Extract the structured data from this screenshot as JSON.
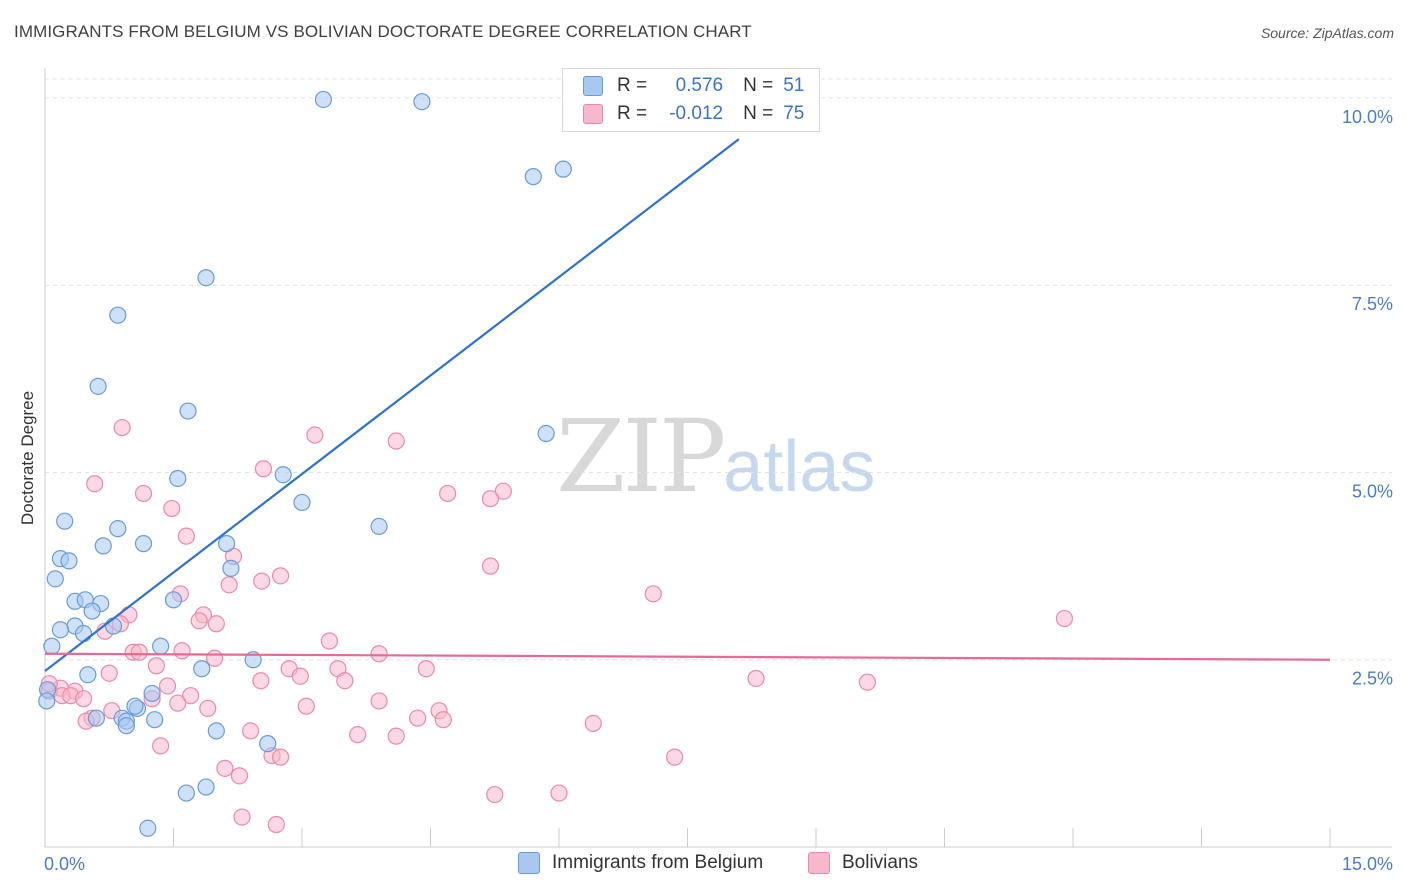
{
  "title": "IMMIGRANTS FROM BELGIUM VS BOLIVIAN DOCTORATE DEGREE CORRELATION CHART",
  "source": "Source: ZipAtlas.com",
  "watermark": {
    "zip": "ZIP",
    "atlas": "atlas"
  },
  "legend": {
    "r_label": "R =",
    "n_label": "N =",
    "belgium": {
      "r": "0.576",
      "n": "51"
    },
    "bolivians": {
      "r": "-0.012",
      "n": "75"
    }
  },
  "colors": {
    "belgium_fill": "#a8c8f0",
    "belgium_stroke": "#6a9bd8",
    "belgium_line": "#2f72d0",
    "bolivians_fill": "#f7b8cc",
    "bolivians_stroke": "#ea8aa8",
    "bolivians_line": "#e86a93",
    "tick_label": "#4a7cc7"
  },
  "chart_data": {
    "type": "scatter",
    "title": "IMMIGRANTS FROM BELGIUM VS BOLIVIAN DOCTORATE DEGREE CORRELATION CHART",
    "xlabel": "",
    "ylabel": "Doctorate Degree",
    "xlim": [
      0,
      15
    ],
    "ylim": [
      0,
      10.4
    ],
    "x_tick_labels": [
      "0.0%",
      "15.0%"
    ],
    "y_ticks": [
      2.5,
      5.0,
      7.5,
      10.0
    ],
    "y_tick_labels": [
      "2.5%",
      "5.0%",
      "7.5%",
      "10.0%"
    ],
    "grid": true,
    "series": [
      {
        "name": "Immigrants from Belgium",
        "r": 0.576,
        "n": 51,
        "trend": {
          "x": [
            0.0,
            8.1
          ],
          "y": [
            2.35,
            9.45
          ]
        },
        "points": [
          [
            3.25,
            9.98
          ],
          [
            4.4,
            9.95
          ],
          [
            5.7,
            8.95
          ],
          [
            6.05,
            9.05
          ],
          [
            1.88,
            7.6
          ],
          [
            0.85,
            7.1
          ],
          [
            0.62,
            6.15
          ],
          [
            1.67,
            5.82
          ],
          [
            5.85,
            5.52
          ],
          [
            1.55,
            4.92
          ],
          [
            2.78,
            4.97
          ],
          [
            3.0,
            4.6
          ],
          [
            0.23,
            4.35
          ],
          [
            0.85,
            4.25
          ],
          [
            3.9,
            4.28
          ],
          [
            0.68,
            4.02
          ],
          [
            1.15,
            4.05
          ],
          [
            2.12,
            4.05
          ],
          [
            0.18,
            3.85
          ],
          [
            0.28,
            3.82
          ],
          [
            2.17,
            3.72
          ],
          [
            0.12,
            3.58
          ],
          [
            0.35,
            3.28
          ],
          [
            0.47,
            3.3
          ],
          [
            0.65,
            3.25
          ],
          [
            1.5,
            3.3
          ],
          [
            0.55,
            3.15
          ],
          [
            0.35,
            2.95
          ],
          [
            0.18,
            2.9
          ],
          [
            0.45,
            2.85
          ],
          [
            0.8,
            2.95
          ],
          [
            0.08,
            2.68
          ],
          [
            1.35,
            2.68
          ],
          [
            2.43,
            2.5
          ],
          [
            0.5,
            2.3
          ],
          [
            1.83,
            2.38
          ],
          [
            0.03,
            2.1
          ],
          [
            0.02,
            1.95
          ],
          [
            1.25,
            2.05
          ],
          [
            1.08,
            1.85
          ],
          [
            1.05,
            1.88
          ],
          [
            0.9,
            1.72
          ],
          [
            0.95,
            1.68
          ],
          [
            0.6,
            1.72
          ],
          [
            1.28,
            1.7
          ],
          [
            0.95,
            1.62
          ],
          [
            2.0,
            1.55
          ],
          [
            2.6,
            1.38
          ],
          [
            1.88,
            0.8
          ],
          [
            1.65,
            0.72
          ],
          [
            1.2,
            0.25
          ]
        ]
      },
      {
        "name": "Bolivians",
        "r": -0.012,
        "n": 75,
        "trend": {
          "x": [
            0.0,
            15.0
          ],
          "y": [
            2.58,
            2.5
          ]
        },
        "points": [
          [
            0.9,
            5.6
          ],
          [
            3.15,
            5.5
          ],
          [
            4.1,
            5.42
          ],
          [
            2.55,
            5.05
          ],
          [
            0.58,
            4.85
          ],
          [
            4.7,
            4.72
          ],
          [
            5.35,
            4.75
          ],
          [
            5.2,
            4.65
          ],
          [
            1.15,
            4.72
          ],
          [
            1.48,
            4.52
          ],
          [
            1.65,
            4.15
          ],
          [
            2.2,
            3.88
          ],
          [
            5.2,
            3.75
          ],
          [
            2.75,
            3.62
          ],
          [
            2.53,
            3.55
          ],
          [
            2.15,
            3.5
          ],
          [
            7.1,
            3.38
          ],
          [
            1.58,
            3.38
          ],
          [
            11.9,
            3.05
          ],
          [
            0.98,
            3.1
          ],
          [
            1.85,
            3.1
          ],
          [
            1.8,
            3.02
          ],
          [
            2.0,
            2.98
          ],
          [
            0.88,
            2.98
          ],
          [
            0.7,
            2.88
          ],
          [
            3.32,
            2.75
          ],
          [
            1.03,
            2.6
          ],
          [
            1.1,
            2.6
          ],
          [
            1.6,
            2.62
          ],
          [
            3.9,
            2.58
          ],
          [
            1.98,
            2.52
          ],
          [
            1.3,
            2.42
          ],
          [
            3.42,
            2.38
          ],
          [
            4.45,
            2.38
          ],
          [
            2.85,
            2.38
          ],
          [
            0.75,
            2.32
          ],
          [
            2.98,
            2.28
          ],
          [
            3.5,
            2.22
          ],
          [
            8.3,
            2.25
          ],
          [
            9.6,
            2.2
          ],
          [
            2.52,
            2.22
          ],
          [
            1.43,
            2.15
          ],
          [
            0.18,
            2.12
          ],
          [
            0.35,
            2.08
          ],
          [
            0.05,
            2.08
          ],
          [
            0.2,
            2.02
          ],
          [
            0.3,
            2.02
          ],
          [
            1.25,
            1.98
          ],
          [
            1.7,
            2.02
          ],
          [
            0.45,
            1.98
          ],
          [
            1.55,
            1.92
          ],
          [
            3.9,
            1.95
          ],
          [
            4.6,
            1.82
          ],
          [
            3.05,
            1.88
          ],
          [
            1.9,
            1.85
          ],
          [
            0.78,
            1.82
          ],
          [
            0.55,
            1.72
          ],
          [
            0.48,
            1.68
          ],
          [
            4.35,
            1.72
          ],
          [
            4.65,
            1.7
          ],
          [
            6.4,
            1.65
          ],
          [
            2.4,
            1.55
          ],
          [
            3.65,
            1.5
          ],
          [
            4.1,
            1.48
          ],
          [
            1.35,
            1.35
          ],
          [
            2.65,
            1.22
          ],
          [
            2.75,
            1.2
          ],
          [
            7.35,
            1.2
          ],
          [
            2.1,
            1.05
          ],
          [
            2.27,
            0.95
          ],
          [
            5.25,
            0.7
          ],
          [
            6.0,
            0.72
          ],
          [
            2.3,
            0.4
          ],
          [
            2.7,
            0.3
          ],
          [
            0.05,
            2.18
          ]
        ]
      }
    ]
  }
}
